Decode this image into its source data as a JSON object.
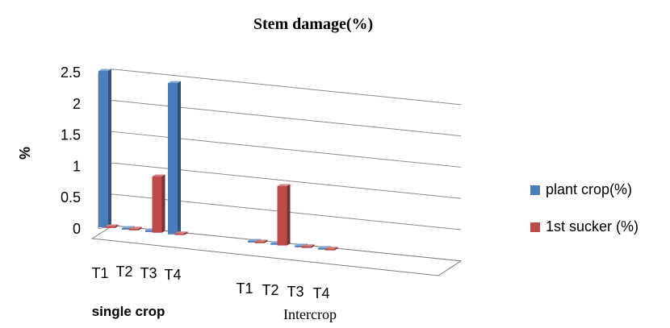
{
  "chart_data": {
    "type": "bar",
    "title": "Stem damage(%)",
    "ylabel": "%",
    "ylim": [
      0,
      2.5
    ],
    "yticks": [
      "0",
      "0.5",
      "1",
      "1.5",
      "2",
      "2.5"
    ],
    "groups": [
      {
        "label": "single crop",
        "categories": [
          "T1",
          "T2",
          "T3",
          "T4"
        ]
      },
      {
        "label": "Intercrop",
        "categories": [
          "T1",
          "T2",
          "T3",
          "T4"
        ]
      }
    ],
    "series": [
      {
        "name": "plant crop(%)",
        "color": "#4a7ebb",
        "values": [
          2.5,
          0,
          0,
          2.42,
          0,
          0,
          0,
          0
        ]
      },
      {
        "name": "1st sucker (%)",
        "color": "#be4b48",
        "values": [
          0,
          0,
          0.9,
          0,
          0,
          0.95,
          0,
          0
        ]
      }
    ],
    "grid": true,
    "legend": "right",
    "view": "3d-perspective"
  }
}
